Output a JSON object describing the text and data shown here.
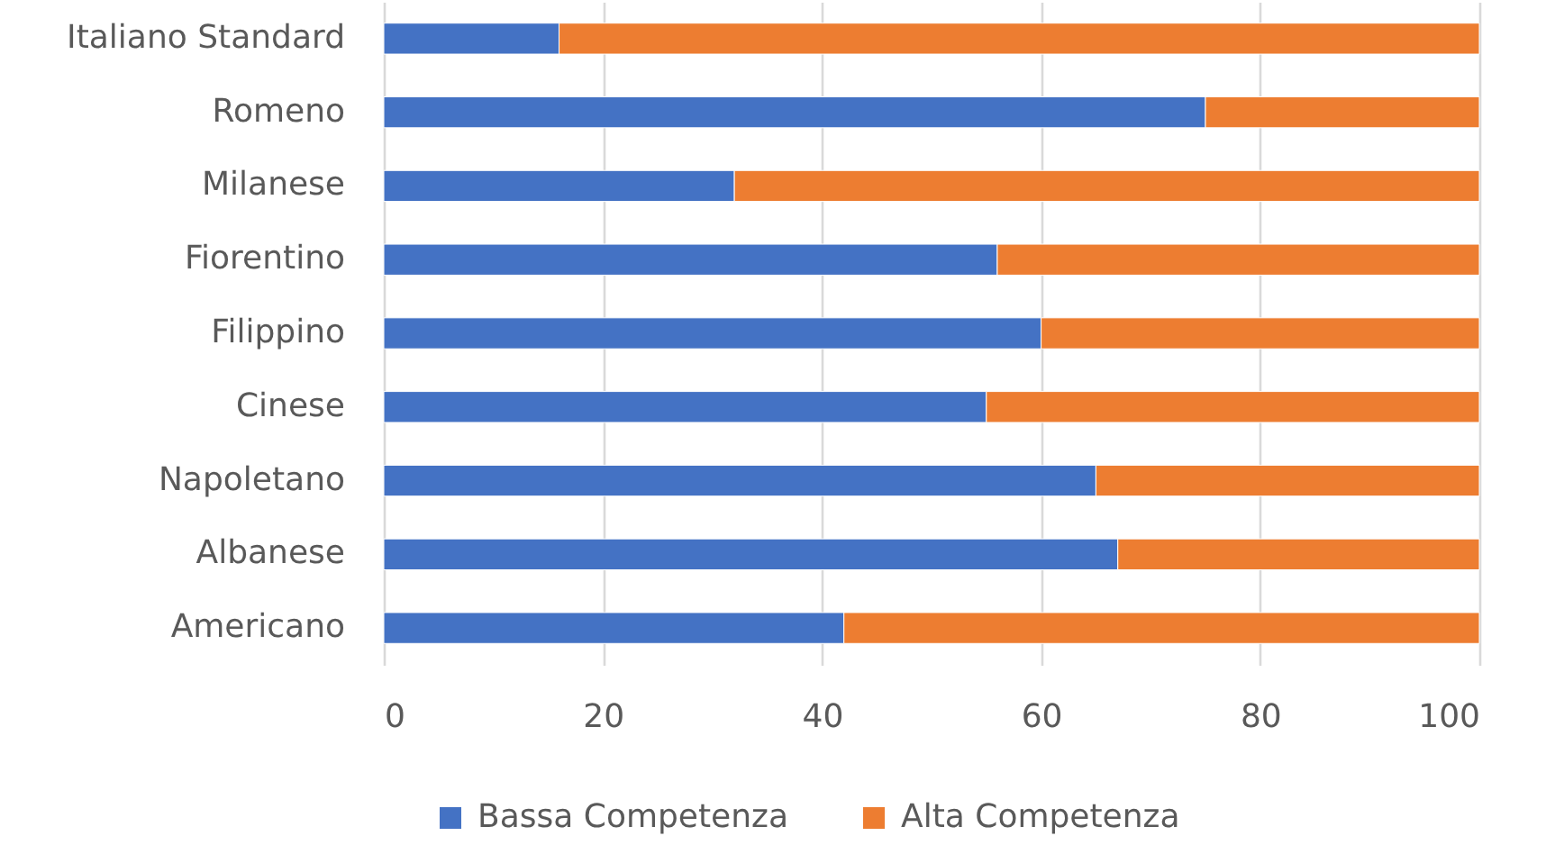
{
  "chart_data": {
    "type": "bar",
    "orientation": "horizontal",
    "stacked": true,
    "categories": [
      "Italiano Standard",
      "Romeno",
      "Milanese",
      "Fiorentino",
      "Filippino",
      "Cinese",
      "Napoletano",
      "Albanese",
      "Americano"
    ],
    "series": [
      {
        "name": "Bassa Competenza",
        "color": "#4472c4",
        "values": [
          16,
          75,
          32,
          56,
          60,
          55,
          65,
          67,
          42
        ]
      },
      {
        "name": "Alta Competenza",
        "color": "#ed7d31",
        "values": [
          84,
          25,
          68,
          44,
          40,
          45,
          35,
          33,
          58
        ]
      }
    ],
    "xlim": [
      0,
      100
    ],
    "xticks": [
      0,
      20,
      40,
      60,
      80,
      100
    ],
    "grid": "x",
    "legend": "bottom"
  }
}
